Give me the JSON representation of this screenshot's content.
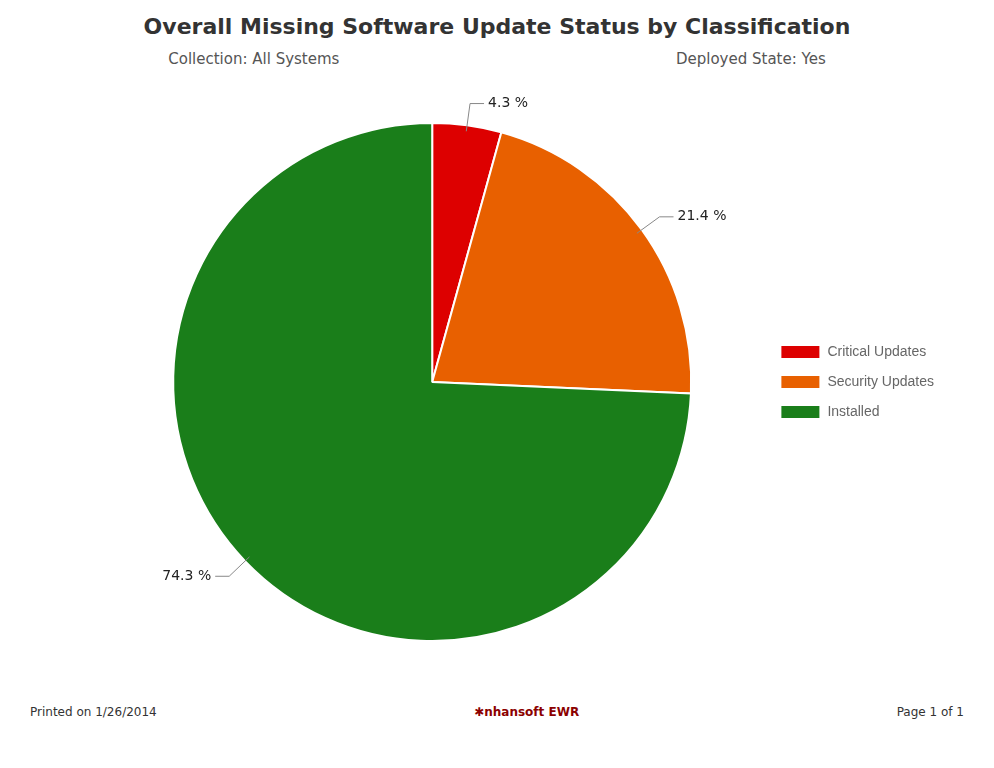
{
  "chart_data": {
    "type": "pie",
    "title": "Overall Missing Software Update Status by Classification",
    "subtitles": [
      "Collection: All Systems",
      "Deployed State: Yes"
    ],
    "categories": [
      "Critical Updates",
      "Security Updates",
      "Installed"
    ],
    "values": [
      4.3,
      21.4,
      74.3
    ],
    "value_labels": [
      "4.3 %",
      "21.4 %",
      "74.3 %"
    ],
    "colors": [
      "#DD0000",
      "#E86000",
      "#1A7E1A"
    ],
    "data_labels": true,
    "legend": "right",
    "footer_left": "Printed on 1/26/2014",
    "footer_right": "Page 1 of 1",
    "logo": "✱nhansoft EWR"
  }
}
